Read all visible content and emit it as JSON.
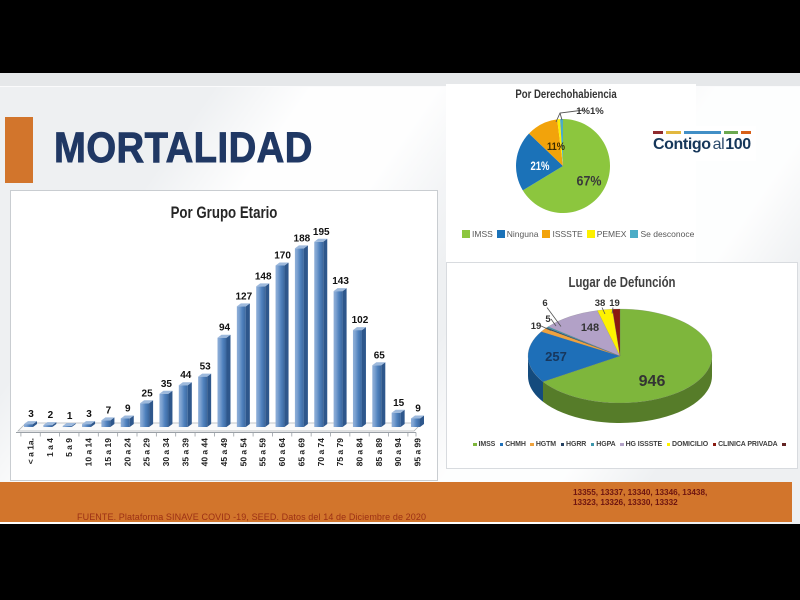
{
  "slide": {
    "title": "MORTALIDAD",
    "source_note": "FUENTE. Plataforma SINAVE COVID -19, SEED. Datos del 14 de Diciembre de 2020",
    "folio_line1": "13355, 13337, 13340, 13346, 13438,",
    "folio_line2": "13323, 13326, 13330, 13332",
    "accent_color": "#d2752c",
    "title_color": "#203864",
    "logo": {
      "word_main": "Contigo",
      "word_mid": "al",
      "word_num": "100",
      "dash_colors": [
        "#8f2a2e",
        "#e2b83f",
        "#418fc6",
        "#6aa84f",
        "#d86018"
      ],
      "dash_widths": [
        10,
        15,
        37,
        14,
        10
      ]
    }
  },
  "chart_data": [
    {
      "type": "bar",
      "title": "Por Grupo Etario",
      "categories": [
        "< a 1a.",
        "1 a 4",
        "5 a 9",
        "10 a 14",
        "15 a 19",
        "20 a 24",
        "25 a 29",
        "30 a 34",
        "35 a 39",
        "40 a 44",
        "45 a 49",
        "50 a 54",
        "55 a 59",
        "60 a 64",
        "65 a 69",
        "70 a 74",
        "75 a 79",
        "80 a 84",
        "85 a 89",
        "90 a 94",
        "95 a 99"
      ],
      "values": [
        3,
        2,
        1,
        3,
        7,
        9,
        25,
        35,
        44,
        53,
        94,
        127,
        148,
        170,
        188,
        195,
        143,
        102,
        65,
        15,
        9
      ],
      "bar_color": "#4f81bd",
      "bar_color_dark": "#2e578c",
      "bar_color_light": "#8fafd8",
      "bar_color_top": "#9db9dc",
      "ylim": [
        0,
        195
      ],
      "grid": false,
      "xlabel": "",
      "ylabel": ""
    },
    {
      "type": "pie",
      "title": "Por Derechohabiencia",
      "labels": [
        "IMSS",
        "Ninguna",
        "ISSSTE",
        "PEMEX",
        "Se desconoce"
      ],
      "values": [
        67,
        21,
        11,
        1,
        1
      ],
      "pct_labels": [
        "67%",
        "21%",
        "11%",
        "1%",
        "1%"
      ],
      "colors": [
        "#8cc63e",
        "#1b72b8",
        "#f2a30b",
        "#fdf000",
        "#4bacc6"
      ],
      "callout_label": "1%1%",
      "legend_position": "bottom"
    },
    {
      "type": "pie3d",
      "title": "Lugar de Defunción",
      "labels": [
        "IMSS",
        "CHMH",
        "HGTM",
        "HGRR",
        "HGPA",
        "HG ISSSTE",
        "DOMICILIO",
        "CLINICA PRIVADA"
      ],
      "values": [
        946,
        257,
        19,
        5,
        6,
        148,
        38,
        19
      ],
      "colors": [
        "#7eb63c",
        "#1e6fb8",
        "#efa23d",
        "#254061",
        "#3c96ac",
        "#b2a1c7",
        "#fef200",
        "#8a1a10"
      ],
      "legend_extra_marker": "#632423",
      "legend_position": "bottom"
    }
  ]
}
